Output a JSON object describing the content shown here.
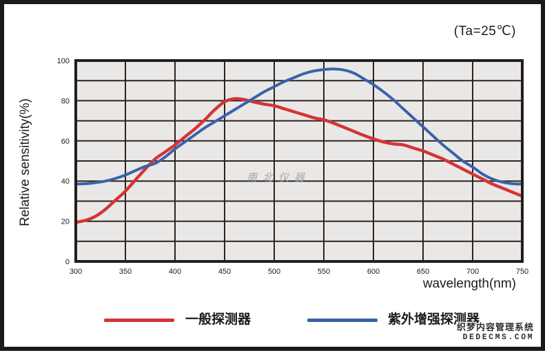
{
  "chart_data": {
    "type": "line",
    "title": "",
    "annotation": "(Ta=25℃)",
    "xlabel": "wavelength(nm)",
    "ylabel": "Relative sensitivity(%)",
    "xlim": [
      300,
      750
    ],
    "ylim": [
      0,
      100
    ],
    "xticks": [
      300,
      350,
      400,
      450,
      500,
      550,
      600,
      650,
      700,
      750
    ],
    "yticks": [
      0,
      20,
      40,
      60,
      80,
      100
    ],
    "grid": {
      "x_step_nm": 50,
      "y_step_pct": 10,
      "visible": true
    },
    "legend_position": "bottom",
    "x": [
      300,
      310,
      320,
      330,
      340,
      350,
      360,
      370,
      380,
      390,
      400,
      410,
      420,
      430,
      440,
      450,
      460,
      470,
      480,
      490,
      500,
      510,
      520,
      530,
      540,
      550,
      560,
      570,
      580,
      590,
      600,
      610,
      620,
      630,
      640,
      650,
      660,
      670,
      680,
      690,
      700,
      710,
      720,
      730,
      740,
      750
    ],
    "series": [
      {
        "name": "一般探测器",
        "color": "#d43438",
        "values": [
          19.5,
          20.5,
          22.5,
          26,
          30.5,
          35,
          40.5,
          46,
          51,
          54.5,
          58,
          62,
          66,
          70.5,
          75.5,
          79.5,
          81,
          80.5,
          79.3,
          78.3,
          77.5,
          76,
          74.5,
          73,
          71.5,
          70.5,
          68.8,
          66.8,
          64.8,
          62.8,
          61,
          59.5,
          58.5,
          58,
          56.5,
          55,
          53,
          51,
          48.5,
          46,
          43.5,
          41,
          38.5,
          36.5,
          34.5,
          32.5
        ]
      },
      {
        "name": "紫外增强探测器",
        "color": "#3862ab",
        "values": [
          38.5,
          38.7,
          39.2,
          40,
          41.3,
          43,
          45.2,
          47.3,
          48.8,
          52,
          56,
          59.5,
          63,
          66.5,
          69.5,
          72.5,
          75.5,
          78.5,
          81.5,
          84.5,
          87,
          89.5,
          91.5,
          93.5,
          94.8,
          95.5,
          95.8,
          95.3,
          93.8,
          91,
          88,
          84.5,
          80.5,
          76,
          71.5,
          67,
          62.5,
          58,
          54,
          50,
          47,
          43.5,
          41,
          39.5,
          38.7,
          38.5
        ]
      }
    ]
  },
  "watermarks": {
    "center": "南北仪器",
    "footer_line1": "织梦内容管理系统",
    "footer_line2": "DEDECMS.COM"
  },
  "colors": {
    "plot_background": "#e9e8e6",
    "grid_line": "#2b2320",
    "plot_border": "#231d1b",
    "outer_frame": "#1d1918",
    "axis_text": "#1b1b1b",
    "watermark_gray": "#9b9b9b"
  }
}
